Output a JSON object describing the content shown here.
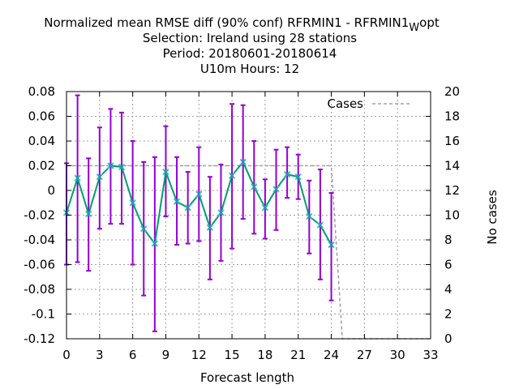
{
  "colors": {
    "series": "#009e73",
    "marker": "#56b4e9",
    "errorbar": "#9400d3",
    "cases": "#a0a0a0"
  },
  "chart_data": {
    "type": "line",
    "title_lines": [
      "Normalized mean RMSE diff (90% conf) RFRMIN1 - RFRMIN1",
      "Selection: Ireland using    28 stations",
      "Period: 20180601-20180614",
      "U10m   Hours:  12"
    ],
    "title_subscript": "W",
    "title_suffix": "opt",
    "xlabel": "Forecast length",
    "ylabel": "",
    "y2label": "No cases",
    "xlim": [
      0,
      33
    ],
    "ylim": [
      -0.12,
      0.08
    ],
    "y2lim": [
      0,
      20
    ],
    "xticks": [
      0,
      3,
      6,
      9,
      12,
      15,
      18,
      21,
      24,
      27,
      30,
      33
    ],
    "yticks": [
      -0.12,
      -0.1,
      -0.08,
      -0.06,
      -0.04,
      -0.02,
      0,
      0.02,
      0.04,
      0.06,
      0.08
    ],
    "ytick_labels": [
      "-0.12",
      "-0.1",
      "-0.08",
      "-0.06",
      "-0.04",
      "-0.02",
      "0",
      "0.02",
      "0.04",
      "0.06",
      "0.08"
    ],
    "y2ticks": [
      0,
      2,
      4,
      6,
      8,
      10,
      12,
      14,
      16,
      18,
      20
    ],
    "grid": true,
    "legend": {
      "position": "top-right",
      "entries": [
        "Cases"
      ]
    },
    "series": [
      {
        "x": [
          0,
          1,
          2,
          3,
          4,
          5,
          6,
          7,
          8,
          9,
          10,
          11,
          12,
          13,
          14,
          15,
          16,
          17,
          18,
          19,
          20,
          21,
          22,
          23,
          24
        ],
        "values": [
          -0.018,
          0.01,
          -0.019,
          0.011,
          0.02,
          0.019,
          -0.01,
          -0.031,
          -0.043,
          0.015,
          -0.009,
          -0.014,
          -0.003,
          -0.03,
          -0.018,
          0.012,
          0.023,
          0.003,
          -0.014,
          0.001,
          0.013,
          0.011,
          -0.021,
          -0.028,
          -0.044
        ],
        "lower": [
          -0.06,
          -0.058,
          -0.065,
          -0.031,
          -0.027,
          -0.027,
          -0.06,
          -0.085,
          -0.114,
          -0.021,
          -0.044,
          -0.043,
          -0.041,
          -0.072,
          -0.057,
          -0.047,
          -0.023,
          -0.035,
          -0.039,
          -0.032,
          -0.006,
          -0.007,
          -0.051,
          -0.072,
          -0.089
        ],
        "upper": [
          0.022,
          0.077,
          0.026,
          0.051,
          0.066,
          0.063,
          0.04,
          0.023,
          0.027,
          0.052,
          0.027,
          0.015,
          0.035,
          0.011,
          0.021,
          0.07,
          0.069,
          0.04,
          0.009,
          0.033,
          0.035,
          0.029,
          0.008,
          0.017,
          -0.002
        ]
      },
      {
        "name": "Cases",
        "axis": "y2",
        "x": [
          0,
          24,
          25,
          33
        ],
        "values": [
          14,
          14,
          0,
          0
        ]
      }
    ]
  }
}
